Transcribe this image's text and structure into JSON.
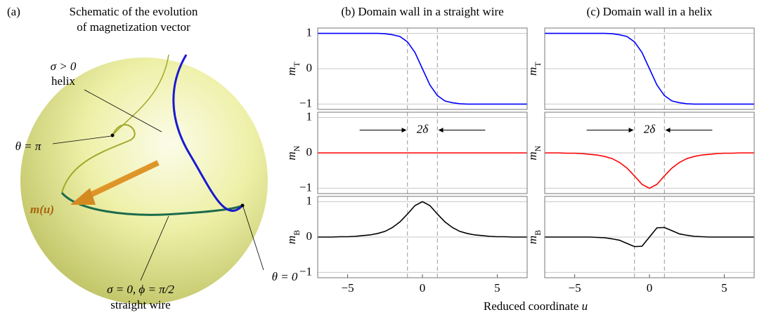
{
  "schematic": {
    "label": "(a)",
    "title_lines": [
      "Schematic of the evolution",
      "of magnetization vector"
    ],
    "helix_condition": "σ > 0",
    "helix_label": "helix",
    "theta_pi": "θ = π",
    "vector_label": "m(u)",
    "wire_condition": "σ = 0, ϕ = π/2",
    "wire_label": "straight wire",
    "theta_zero": "θ = 0"
  },
  "figure": {
    "xlabel": {
      "text": "Reduced coordinate",
      "variable": "u"
    }
  },
  "chart_data": [
    {
      "type": "line",
      "title": "(b) Domain wall in a straight wire",
      "ylabel": {
        "symbol": "m",
        "subscript": "T"
      },
      "x": [
        -7,
        -6.5,
        -6,
        -5.5,
        -5,
        -4.5,
        -4,
        -3.5,
        -3,
        -2.5,
        -2,
        -1.5,
        -1,
        -0.5,
        0,
        0.5,
        1,
        1.5,
        2,
        2.5,
        3,
        3.5,
        4,
        4.5,
        5,
        5.5,
        6,
        6.5,
        7
      ],
      "values": [
        1,
        1,
        1,
        1,
        1,
        1,
        1,
        1,
        1,
        0.99,
        0.96,
        0.91,
        0.76,
        0.46,
        0,
        -0.46,
        -0.76,
        -0.91,
        -0.96,
        -0.99,
        -1,
        -1,
        -1,
        -1,
        -1,
        -1,
        -1,
        -1,
        -1
      ],
      "color": "#0000ff",
      "xlim": [
        -7,
        7
      ],
      "ylim": [
        -1.15,
        1.15
      ],
      "yticks": [
        {
          "value": -1,
          "label": "−1"
        },
        0,
        1
      ],
      "vlines": [
        -1,
        1
      ],
      "grid": true
    },
    {
      "type": "line",
      "ylabel": {
        "symbol": "m",
        "subscript": "N"
      },
      "annotation": "2δ",
      "x": [
        -7,
        -6.5,
        -6,
        -5.5,
        -5,
        -4.5,
        -4,
        -3.5,
        -3,
        -2.5,
        -2,
        -1.5,
        -1,
        -0.5,
        0,
        0.5,
        1,
        1.5,
        2,
        2.5,
        3,
        3.5,
        4,
        4.5,
        5,
        5.5,
        6,
        6.5,
        7
      ],
      "values": [
        0,
        0,
        0,
        0,
        0,
        0,
        0,
        0,
        0,
        0,
        0,
        0,
        0,
        0,
        0,
        0,
        0,
        0,
        0,
        0,
        0,
        0,
        0,
        0,
        0,
        0,
        0,
        0,
        0
      ],
      "color": "#ff0000",
      "xlim": [
        -7,
        7
      ],
      "ylim": [
        -1.15,
        1.15
      ],
      "yticks": [
        {
          "value": -1,
          "label": "−1"
        },
        0,
        1
      ],
      "vlines": [
        -1,
        1
      ],
      "grid": true
    },
    {
      "type": "line",
      "ylabel": {
        "symbol": "m",
        "subscript": "B"
      },
      "x": [
        -7,
        -6.5,
        -6,
        -5.5,
        -5,
        -4.5,
        -4,
        -3.5,
        -3,
        -2.5,
        -2,
        -1.5,
        -1,
        -0.5,
        0,
        0.5,
        1,
        1.5,
        2,
        2.5,
        3,
        3.5,
        4,
        4.5,
        5,
        5.5,
        6,
        6.5,
        7
      ],
      "values": [
        0,
        0,
        0,
        0.01,
        0.01,
        0.02,
        0.04,
        0.06,
        0.1,
        0.16,
        0.27,
        0.43,
        0.65,
        0.89,
        1,
        0.89,
        0.65,
        0.43,
        0.27,
        0.16,
        0.1,
        0.06,
        0.04,
        0.02,
        0.01,
        0.01,
        0,
        0,
        0
      ],
      "color": "#000000",
      "xlim": [
        -7,
        7
      ],
      "ylim": [
        -1.15,
        1.15
      ],
      "yticks": [
        {
          "value": -1,
          "label": "−1"
        },
        0,
        1
      ],
      "xticks": [
        {
          "value": -5,
          "label": "−5"
        },
        0,
        5
      ],
      "vlines": [
        -1,
        1
      ],
      "grid": true
    },
    {
      "type": "line",
      "title": "(c) Domain wall in a helix",
      "ylabel": {
        "symbol": "m",
        "subscript": "T"
      },
      "x": [
        -7,
        -6.5,
        -6,
        -5.5,
        -5,
        -4.5,
        -4,
        -3.5,
        -3,
        -2.5,
        -2,
        -1.5,
        -1,
        -0.5,
        0,
        0.5,
        1,
        1.5,
        2,
        2.5,
        3,
        3.5,
        4,
        4.5,
        5,
        5.5,
        6,
        6.5,
        7
      ],
      "values": [
        1,
        1,
        1,
        1,
        1,
        1,
        1,
        1,
        1,
        0.99,
        0.96,
        0.91,
        0.76,
        0.46,
        0,
        -0.46,
        -0.76,
        -0.91,
        -0.96,
        -0.99,
        -1,
        -1,
        -1,
        -1,
        -1,
        -1,
        -1,
        -1,
        -1
      ],
      "color": "#0000ff",
      "xlim": [
        -7,
        7
      ],
      "ylim": [
        -1.15,
        1.15
      ],
      "yticks": [
        -1,
        0,
        1
      ],
      "show_ytick_labels": false,
      "vlines": [
        -1,
        1
      ],
      "grid": true
    },
    {
      "type": "line",
      "ylabel": {
        "symbol": "m",
        "subscript": "N"
      },
      "annotation": "2δ",
      "x": [
        -7,
        -6.5,
        -6,
        -5.5,
        -5,
        -4.5,
        -4,
        -3.5,
        -3,
        -2.5,
        -2,
        -1.5,
        -1,
        -0.5,
        0,
        0.5,
        1,
        1.5,
        2,
        2.5,
        3,
        3.5,
        4,
        4.5,
        5,
        5.5,
        6,
        6.5,
        7
      ],
      "values": [
        0,
        0,
        0,
        -0.01,
        -0.01,
        -0.02,
        -0.04,
        -0.06,
        -0.1,
        -0.16,
        -0.27,
        -0.43,
        -0.65,
        -0.89,
        -1,
        -0.89,
        -0.65,
        -0.43,
        -0.27,
        -0.16,
        -0.1,
        -0.06,
        -0.04,
        -0.02,
        -0.01,
        -0.01,
        0,
        0,
        0
      ],
      "color": "#ff0000",
      "xlim": [
        -7,
        7
      ],
      "ylim": [
        -1.15,
        1.15
      ],
      "yticks": [
        -1,
        0,
        1
      ],
      "show_ytick_labels": false,
      "vlines": [
        -1,
        1
      ],
      "grid": true
    },
    {
      "type": "line",
      "ylabel": {
        "symbol": "m",
        "subscript": "B"
      },
      "x": [
        -7,
        -6.5,
        -6,
        -5.5,
        -5,
        -4.5,
        -4,
        -3.5,
        -3,
        -2.5,
        -2,
        -1.5,
        -1,
        -0.5,
        0,
        0.5,
        1,
        1.5,
        2,
        2.5,
        3,
        3.5,
        4,
        4.5,
        5,
        5.5,
        6,
        6.5,
        7
      ],
      "values": [
        0,
        0,
        0,
        0,
        0,
        0,
        0,
        -0.01,
        -0.02,
        -0.05,
        -0.09,
        -0.18,
        -0.27,
        -0.26,
        0,
        0.26,
        0.27,
        0.18,
        0.09,
        0.05,
        0.02,
        0.01,
        0,
        0,
        0,
        0,
        0,
        0,
        0
      ],
      "color": "#000000",
      "xlim": [
        -7,
        7
      ],
      "ylim": [
        -1.15,
        1.15
      ],
      "yticks": [
        -1,
        0,
        1
      ],
      "show_ytick_labels": false,
      "xticks": [
        {
          "value": -5,
          "label": "−5"
        },
        0,
        5
      ],
      "vlines": [
        -1,
        1
      ],
      "grid": true
    }
  ]
}
